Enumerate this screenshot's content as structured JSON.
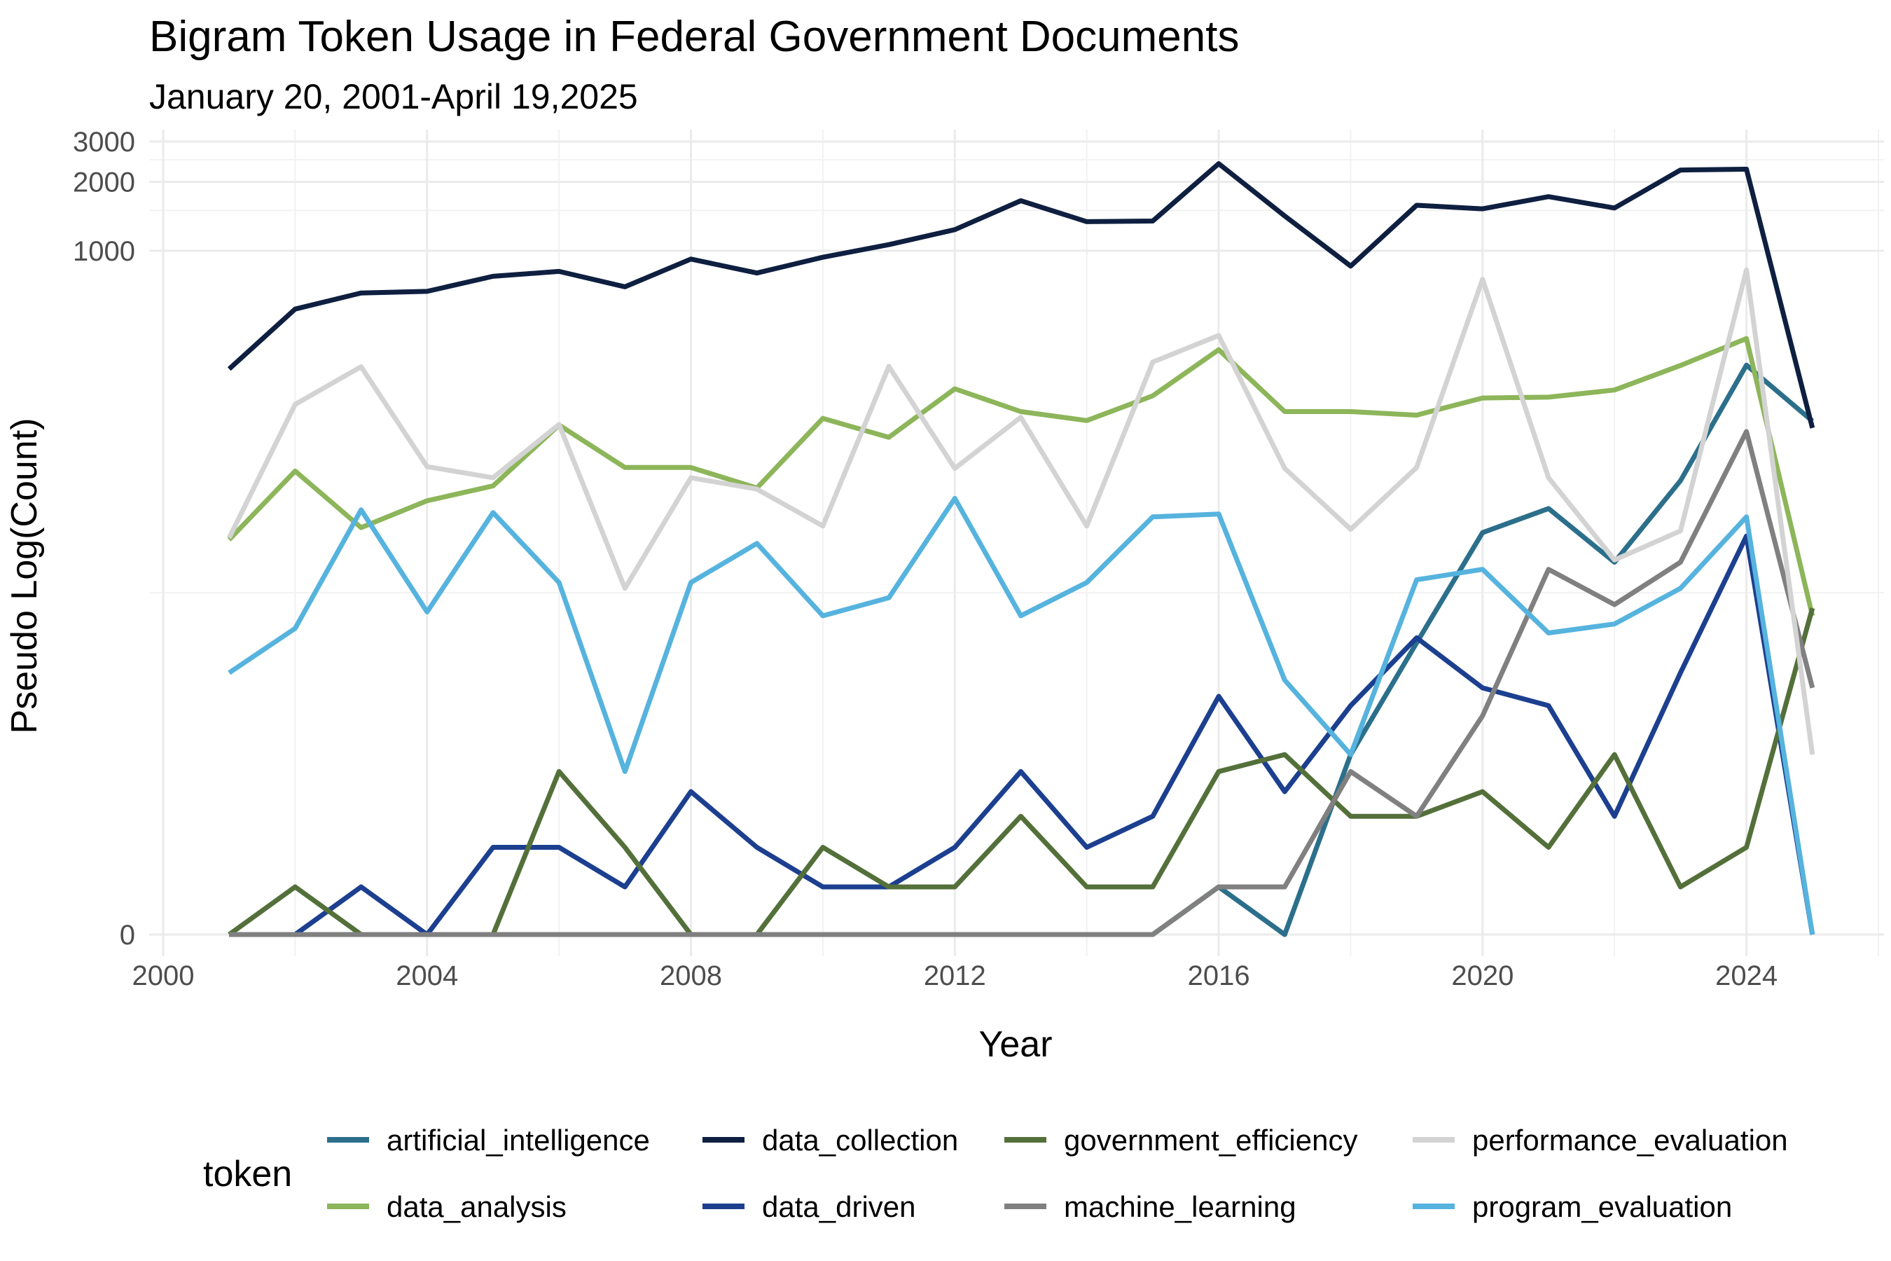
{
  "chart_data": {
    "type": "line",
    "title": "Bigram Token Usage in Federal Government Documents",
    "subtitle": "January 20, 2001-April 19,2025",
    "xlabel": "Year",
    "ylabel": "Pseudo Log(Count)",
    "yscale": "pseudo_log",
    "xlim": [
      2000,
      2026
    ],
    "x_ticks": [
      2000,
      2004,
      2008,
      2012,
      2016,
      2020,
      2024
    ],
    "x_tick_labels": [
      "2000",
      "2004",
      "2008",
      "2012",
      "2016",
      "2020",
      "2024"
    ],
    "y_ticks": [
      0,
      1000,
      2000,
      3000
    ],
    "y_tick_labels": [
      "0",
      "1000",
      "2000",
      "3000"
    ],
    "grid": true,
    "legend_title": "token",
    "legend_position": "bottom",
    "x": [
      2001,
      2002,
      2003,
      2004,
      2005,
      2006,
      2007,
      2008,
      2009,
      2010,
      2011,
      2012,
      2013,
      2014,
      2015,
      2016,
      2017,
      2018,
      2019,
      2020,
      2021,
      2022,
      2023,
      2024,
      2025
    ],
    "series": [
      {
        "name": "artificial_intelligence",
        "color": "#2b6f8b",
        "values": [
          0,
          0,
          0,
          0,
          0,
          0,
          0,
          0,
          0,
          0,
          0,
          0,
          0,
          0,
          0,
          1,
          0,
          6,
          19,
          58,
          74,
          43,
          98,
          315,
          179
        ]
      },
      {
        "name": "data_analysis",
        "color": "#8db55a",
        "values": [
          54,
          108,
          61,
          80,
          93,
          172,
          112,
          112,
          91,
          184,
          152,
          248,
          197,
          180,
          231,
          368,
          197,
          197,
          190,
          226,
          228,
          245,
          314,
          412,
          25
        ]
      },
      {
        "name": "data_collection",
        "color": "#0e1f40",
        "values": [
          303,
          555,
          653,
          664,
          773,
          812,
          695,
          920,
          799,
          937,
          1064,
          1237,
          1654,
          1340,
          1349,
          2401,
          1420,
          857,
          1581,
          1525,
          1724,
          1538,
          2252,
          2271,
          167
        ]
      },
      {
        "name": "data_driven",
        "color": "#1c3f8f",
        "values": [
          0,
          0,
          1,
          0,
          2,
          2,
          1,
          4,
          2,
          1,
          1,
          2,
          5,
          2,
          3,
          11,
          4,
          10,
          20,
          12,
          10,
          3,
          14,
          56,
          0
        ]
      },
      {
        "name": "government_efficiency",
        "color": "#54703a",
        "values": [
          0,
          1,
          0,
          0,
          0,
          5,
          2,
          0,
          0,
          2,
          1,
          1,
          3,
          1,
          1,
          5,
          6,
          3,
          3,
          4,
          2,
          6,
          1,
          2,
          27
        ]
      },
      {
        "name": "machine_learning",
        "color": "#808080",
        "values": [
          0,
          0,
          0,
          0,
          0,
          0,
          0,
          0,
          0,
          0,
          0,
          0,
          0,
          0,
          0,
          1,
          1,
          5,
          3,
          9,
          40,
          28,
          43,
          161,
          12
        ]
      },
      {
        "name": "performance_evaluation",
        "color": "#d3d3d3",
        "values": [
          55,
          212,
          310,
          113,
          101,
          173,
          33,
          101,
          90,
          62,
          311,
          111,
          186,
          62,
          325,
          425,
          111,
          60,
          112,
          750,
          101,
          44,
          59,
          825,
          6
        ]
      },
      {
        "name": "program_evaluation",
        "color": "#56b3de",
        "values": [
          14,
          22,
          73,
          26,
          71,
          35,
          5,
          35,
          52,
          25,
          30,
          82,
          25,
          35,
          68,
          70,
          13,
          6,
          36,
          40,
          21,
          23,
          33,
          68,
          0
        ]
      }
    ]
  }
}
